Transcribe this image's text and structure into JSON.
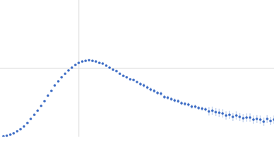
{
  "chart_data": {
    "type": "scatter",
    "x": [
      5,
      10,
      15,
      20,
      25,
      30,
      35,
      40,
      45,
      50,
      55,
      60,
      65,
      70,
      75,
      80,
      85,
      90,
      95,
      100,
      105,
      110,
      115,
      120,
      125,
      130,
      135,
      140,
      145,
      150,
      155,
      160,
      165,
      170,
      175,
      180,
      185,
      190,
      195,
      200,
      205,
      210,
      215,
      220,
      225,
      230,
      235,
      240,
      245,
      250,
      255,
      260,
      265,
      270,
      275,
      280,
      285,
      290,
      295,
      300,
      305,
      310,
      315,
      320,
      325,
      330,
      335,
      340,
      345,
      350,
      355,
      360,
      365,
      370,
      375,
      380,
      385,
      390,
      395,
      400
    ],
    "series": [
      {
        "color": "#3b6bc4",
        "error_color": "#a9bfe6",
        "values": [
          0.5,
          1.5,
          3,
          5,
          8,
          11,
          15,
          20,
          26,
          32,
          38,
          45,
          52,
          60,
          67,
          75,
          81,
          87,
          92,
          97,
          101,
          105,
          108,
          110,
          111,
          112,
          111,
          110,
          108,
          107,
          104,
          101,
          98,
          96,
          92,
          89,
          87,
          84,
          83,
          80,
          77,
          75,
          72,
          69,
          67,
          64,
          63,
          58,
          57,
          55,
          53,
          52,
          49,
          48,
          47,
          44,
          44,
          42,
          41,
          40,
          37,
          38,
          36,
          35,
          34,
          31,
          32,
          29,
          31,
          29,
          27,
          28,
          28,
          25,
          26,
          25,
          22,
          26,
          23,
          25
        ],
        "errors": [
          0.5,
          0.5,
          0.5,
          0.5,
          0.5,
          0.5,
          0.5,
          0.5,
          0.5,
          0.5,
          0.5,
          0.5,
          0.5,
          0.5,
          0.5,
          0.5,
          0.5,
          0.5,
          0.5,
          0.5,
          1.5,
          1.5,
          1.5,
          1.5,
          1.5,
          1.5,
          1.5,
          1.5,
          1.5,
          1.5,
          1.5,
          1.5,
          1.5,
          1.5,
          1.5,
          1.5,
          1.5,
          1.5,
          1.5,
          1.5,
          3,
          3,
          3,
          3,
          3,
          3,
          3,
          3,
          3,
          3,
          3,
          3,
          3,
          3,
          3,
          3,
          3,
          3,
          3,
          3,
          6,
          6,
          6,
          6,
          6,
          6,
          6,
          6,
          6,
          6,
          6,
          6,
          6,
          6,
          6,
          6,
          6,
          6,
          6,
          6
        ]
      }
    ],
    "xlim": [
      0,
      400
    ],
    "ylim": [
      0,
      200
    ],
    "xticks": [
      115
    ],
    "yticks": [
      100
    ],
    "grid": true
  }
}
